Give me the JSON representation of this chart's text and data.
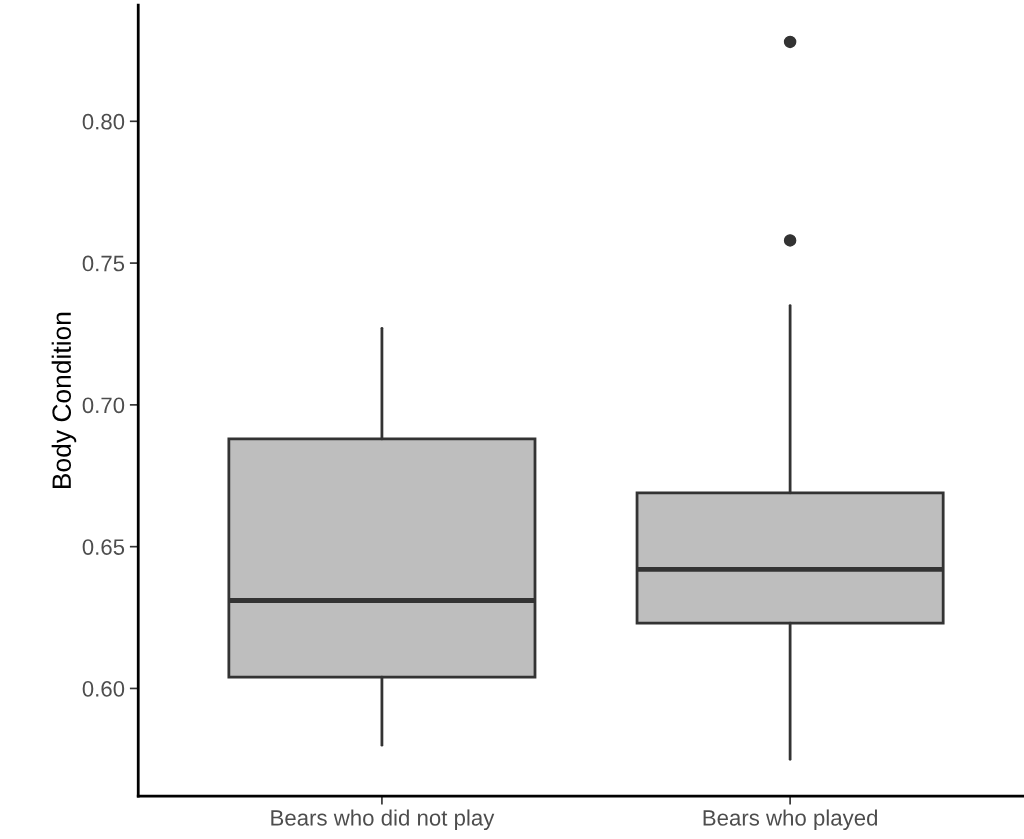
{
  "chart_data": {
    "type": "box",
    "ylabel": "Body Condition",
    "categories": [
      "Bears who did not play",
      "Bears who played"
    ],
    "boxes": [
      {
        "low": 0.58,
        "q1": 0.604,
        "median": 0.631,
        "q3": 0.688,
        "high": 0.727
      },
      {
        "low": 0.575,
        "q1": 0.623,
        "median": 0.642,
        "q3": 0.669,
        "high": 0.735,
        "outliers": [
          0.758,
          0.828
        ]
      }
    ],
    "color": "#bebebe",
    "ylim": [
      0.562,
      0.841
    ],
    "yticks": [
      {
        "value": 0.6,
        "label": "0.60"
      },
      {
        "value": 0.65,
        "label": "0.65"
      },
      {
        "value": 0.7,
        "label": "0.70"
      },
      {
        "value": 0.75,
        "label": "0.75"
      },
      {
        "value": 0.8,
        "label": "0.80"
      }
    ],
    "grid": false
  }
}
